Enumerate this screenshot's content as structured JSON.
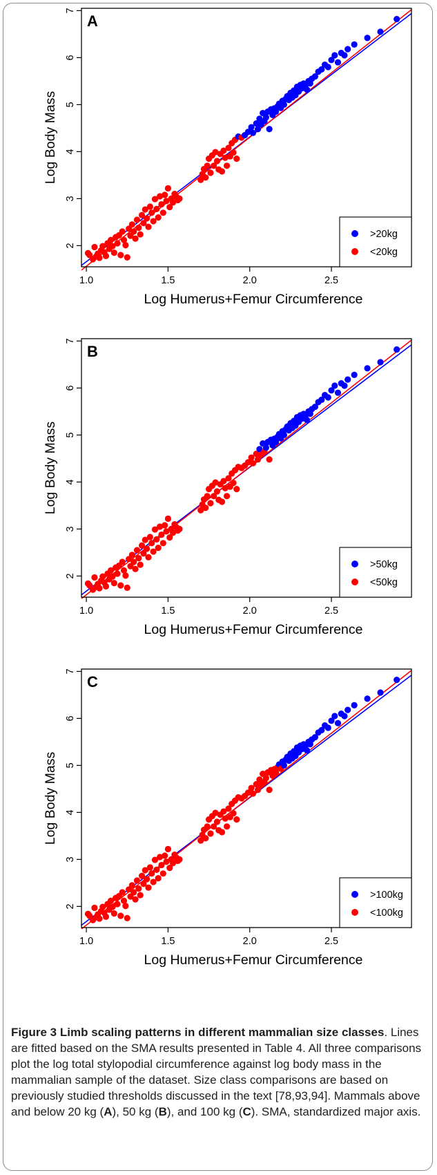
{
  "chart_data": [
    {
      "type": "scatter",
      "panel_label": "A",
      "xlabel": "Log Humerus+Femur Circumference",
      "ylabel": "Log Body Mass",
      "xlim": [
        0.97,
        2.99
      ],
      "ylim": [
        1.55,
        7.05
      ],
      "x_ticks": [
        "1.0",
        "1.5",
        "2.0",
        "2.5"
      ],
      "y_ticks": [
        "2",
        "3",
        "4",
        "5",
        "6",
        "7"
      ],
      "threshold_log": 4.301,
      "legend_position": "bottom-right",
      "series": [
        {
          "name": ">20kg",
          "color": "#0000ff"
        },
        {
          "name": "<20kg",
          "color": "#ff0000"
        }
      ],
      "lines": [
        {
          "color": "#0000ff",
          "x": [
            0.97,
            2.99
          ],
          "y": [
            1.58,
            6.94
          ]
        },
        {
          "color": "#ff0000",
          "x": [
            0.97,
            2.99
          ],
          "y": [
            1.48,
            7.02
          ]
        }
      ]
    },
    {
      "type": "scatter",
      "panel_label": "B",
      "xlabel": "Log Humerus+Femur Circumference",
      "ylabel": "Log Body Mass",
      "xlim": [
        0.97,
        2.99
      ],
      "ylim": [
        1.55,
        7.05
      ],
      "x_ticks": [
        "1.0",
        "1.5",
        "2.0",
        "2.5"
      ],
      "y_ticks": [
        "2",
        "3",
        "4",
        "5",
        "6",
        "7"
      ],
      "threshold_log": 4.699,
      "legend_position": "bottom-right",
      "series": [
        {
          "name": ">50kg",
          "color": "#0000ff"
        },
        {
          "name": "<50kg",
          "color": "#ff0000"
        }
      ],
      "lines": [
        {
          "color": "#0000ff",
          "x": [
            0.97,
            2.99
          ],
          "y": [
            1.6,
            6.92
          ]
        },
        {
          "color": "#ff0000",
          "x": [
            0.97,
            2.99
          ],
          "y": [
            1.52,
            7.02
          ]
        }
      ]
    },
    {
      "type": "scatter",
      "panel_label": "C",
      "xlabel": "Log Humerus+Femur Circumference",
      "ylabel": "Log Body Mass",
      "xlim": [
        0.97,
        2.99
      ],
      "ylim": [
        1.55,
        7.05
      ],
      "x_ticks": [
        "1.0",
        "1.5",
        "2.0",
        "2.5"
      ],
      "y_ticks": [
        "2",
        "3",
        "4",
        "5",
        "6",
        "7"
      ],
      "threshold_log": 5.0,
      "legend_position": "bottom-right",
      "series": [
        {
          "name": ">100kg",
          "color": "#0000ff"
        },
        {
          "name": "<100kg",
          "color": "#ff0000"
        }
      ],
      "lines": [
        {
          "color": "#0000ff",
          "x": [
            0.97,
            2.99
          ],
          "y": [
            1.6,
            6.92
          ]
        },
        {
          "color": "#ff0000",
          "x": [
            0.97,
            2.99
          ],
          "y": [
            1.52,
            7.02
          ]
        }
      ]
    }
  ],
  "shared_points": [
    [
      1.01,
      1.84
    ],
    [
      1.02,
      1.8
    ],
    [
      1.04,
      1.71
    ],
    [
      1.05,
      1.97
    ],
    [
      1.06,
      1.77
    ],
    [
      1.07,
      1.83
    ],
    [
      1.08,
      1.74
    ],
    [
      1.09,
      1.9
    ],
    [
      1.1,
      1.99
    ],
    [
      1.11,
      1.86
    ],
    [
      1.12,
      1.78
    ],
    [
      1.13,
      2.05
    ],
    [
      1.14,
      1.93
    ],
    [
      1.15,
      2.12
    ],
    [
      1.16,
      1.99
    ],
    [
      1.17,
      1.85
    ],
    [
      1.18,
      2.18
    ],
    [
      1.19,
      2.05
    ],
    [
      1.2,
      2.22
    ],
    [
      1.21,
      1.8
    ],
    [
      1.22,
      2.3
    ],
    [
      1.23,
      2.12
    ],
    [
      1.24,
      2.01
    ],
    [
      1.25,
      1.75
    ],
    [
      1.26,
      2.36
    ],
    [
      1.27,
      2.21
    ],
    [
      1.28,
      2.45
    ],
    [
      1.29,
      2.3
    ],
    [
      1.3,
      2.15
    ],
    [
      1.31,
      2.55
    ],
    [
      1.32,
      2.38
    ],
    [
      1.33,
      2.24
    ],
    [
      1.34,
      2.65
    ],
    [
      1.35,
      2.48
    ],
    [
      1.36,
      2.77
    ],
    [
      1.37,
      2.58
    ],
    [
      1.38,
      2.4
    ],
    [
      1.39,
      2.83
    ],
    [
      1.4,
      2.7
    ],
    [
      1.41,
      2.52
    ],
    [
      1.42,
      2.99
    ],
    [
      1.43,
      2.78
    ],
    [
      1.44,
      2.6
    ],
    [
      1.45,
      3.05
    ],
    [
      1.46,
      2.88
    ],
    [
      1.47,
      2.7
    ],
    [
      1.48,
      3.08
    ],
    [
      1.49,
      2.95
    ],
    [
      1.5,
      3.22
    ],
    [
      1.51,
      2.82
    ],
    [
      1.52,
      3.0
    ],
    [
      1.53,
      2.92
    ],
    [
      1.54,
      3.1
    ],
    [
      1.55,
      3.04
    ],
    [
      1.56,
      2.97
    ],
    [
      1.57,
      3.0
    ],
    [
      1.7,
      3.4
    ],
    [
      1.71,
      3.52
    ],
    [
      1.72,
      3.63
    ],
    [
      1.73,
      3.45
    ],
    [
      1.74,
      3.7
    ],
    [
      1.75,
      3.85
    ],
    [
      1.76,
      3.55
    ],
    [
      1.77,
      3.92
    ],
    [
      1.78,
      3.7
    ],
    [
      1.79,
      3.99
    ],
    [
      1.8,
      3.8
    ],
    [
      1.81,
      3.62
    ],
    [
      1.82,
      3.95
    ],
    [
      1.83,
      3.58
    ],
    [
      1.84,
      4.02
    ],
    [
      1.85,
      3.87
    ],
    [
      1.86,
      3.7
    ],
    [
      1.87,
      4.08
    ],
    [
      1.88,
      3.9
    ],
    [
      1.89,
      4.18
    ],
    [
      1.9,
      3.98
    ],
    [
      1.91,
      4.25
    ],
    [
      1.92,
      3.85
    ],
    [
      1.93,
      4.32
    ],
    [
      1.95,
      4.3
    ],
    [
      1.97,
      4.35
    ],
    [
      1.99,
      4.42
    ],
    [
      2.01,
      4.52
    ],
    [
      2.02,
      4.4
    ],
    [
      2.04,
      4.6
    ],
    [
      2.05,
      4.48
    ],
    [
      2.06,
      4.7
    ],
    [
      2.07,
      4.58
    ],
    [
      2.08,
      4.82
    ],
    [
      2.09,
      4.65
    ],
    [
      2.1,
      4.73
    ],
    [
      2.11,
      4.85
    ],
    [
      2.12,
      4.48
    ],
    [
      2.13,
      4.9
    ],
    [
      2.14,
      4.78
    ],
    [
      2.15,
      4.92
    ],
    [
      2.16,
      4.85
    ],
    [
      2.17,
      4.96
    ],
    [
      2.18,
      5.02
    ],
    [
      2.19,
      4.93
    ],
    [
      2.2,
      5.08
    ],
    [
      2.21,
      5.0
    ],
    [
      2.22,
      5.12
    ],
    [
      2.23,
      5.18
    ],
    [
      2.24,
      5.1
    ],
    [
      2.25,
      5.25
    ],
    [
      2.26,
      5.15
    ],
    [
      2.27,
      5.3
    ],
    [
      2.28,
      5.2
    ],
    [
      2.29,
      5.38
    ],
    [
      2.3,
      5.28
    ],
    [
      2.31,
      5.42
    ],
    [
      2.32,
      5.35
    ],
    [
      2.33,
      5.45
    ],
    [
      2.34,
      5.4
    ],
    [
      2.35,
      5.32
    ],
    [
      2.36,
      5.5
    ],
    [
      2.37,
      5.45
    ],
    [
      2.38,
      5.55
    ],
    [
      2.4,
      5.6
    ],
    [
      2.42,
      5.7
    ],
    [
      2.44,
      5.75
    ],
    [
      2.46,
      5.85
    ],
    [
      2.48,
      5.8
    ],
    [
      2.5,
      5.95
    ],
    [
      2.52,
      6.05
    ],
    [
      2.54,
      5.9
    ],
    [
      2.56,
      6.1
    ],
    [
      2.58,
      6.05
    ],
    [
      2.6,
      6.18
    ],
    [
      2.64,
      6.28
    ],
    [
      2.72,
      6.42
    ],
    [
      2.8,
      6.55
    ],
    [
      2.9,
      6.82
    ]
  ],
  "caption": {
    "figure_label": "Figure 3",
    "title": "Limb scaling patterns in different mammalian size classes",
    "body_1": ". Lines are fitted based on the SMA results presented in Table 4. All three comparisons plot the log total stylopodial circumference against log body mass in the mammalian sample of the dataset. Size class comparisons are based on previously studied thresholds discussed in the text [78,93,94]. Mammals above and below 20 kg (",
    "label_a": "A",
    "body_2": "), 50 kg (",
    "label_b": "B",
    "body_3": "), and 100 kg (",
    "label_c": "C",
    "body_4": "). SMA, standardized major axis."
  }
}
